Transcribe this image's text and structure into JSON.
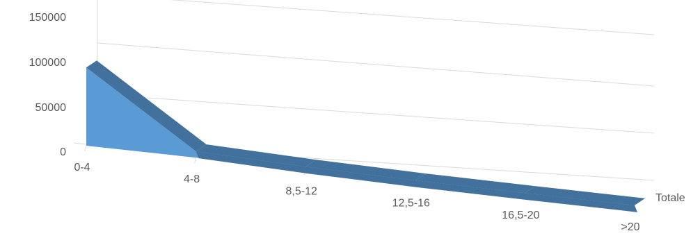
{
  "chart_data": {
    "type": "area",
    "projection": "3d",
    "categories": [
      "0-4",
      "4-8",
      "8,5-12",
      "12,5-16",
      "16,5-20",
      ">20"
    ],
    "series": [
      {
        "name": "Totale",
        "values": [
          115000,
          10000,
          5000,
          2000,
          800,
          300
        ],
        "color": "#5b9bd5",
        "top_color": "#41719c"
      }
    ],
    "y_ticks": [
      "0",
      "50000",
      "100000",
      "150000"
    ],
    "ylim": [
      0,
      150000
    ],
    "grid": true,
    "legend": "none"
  }
}
